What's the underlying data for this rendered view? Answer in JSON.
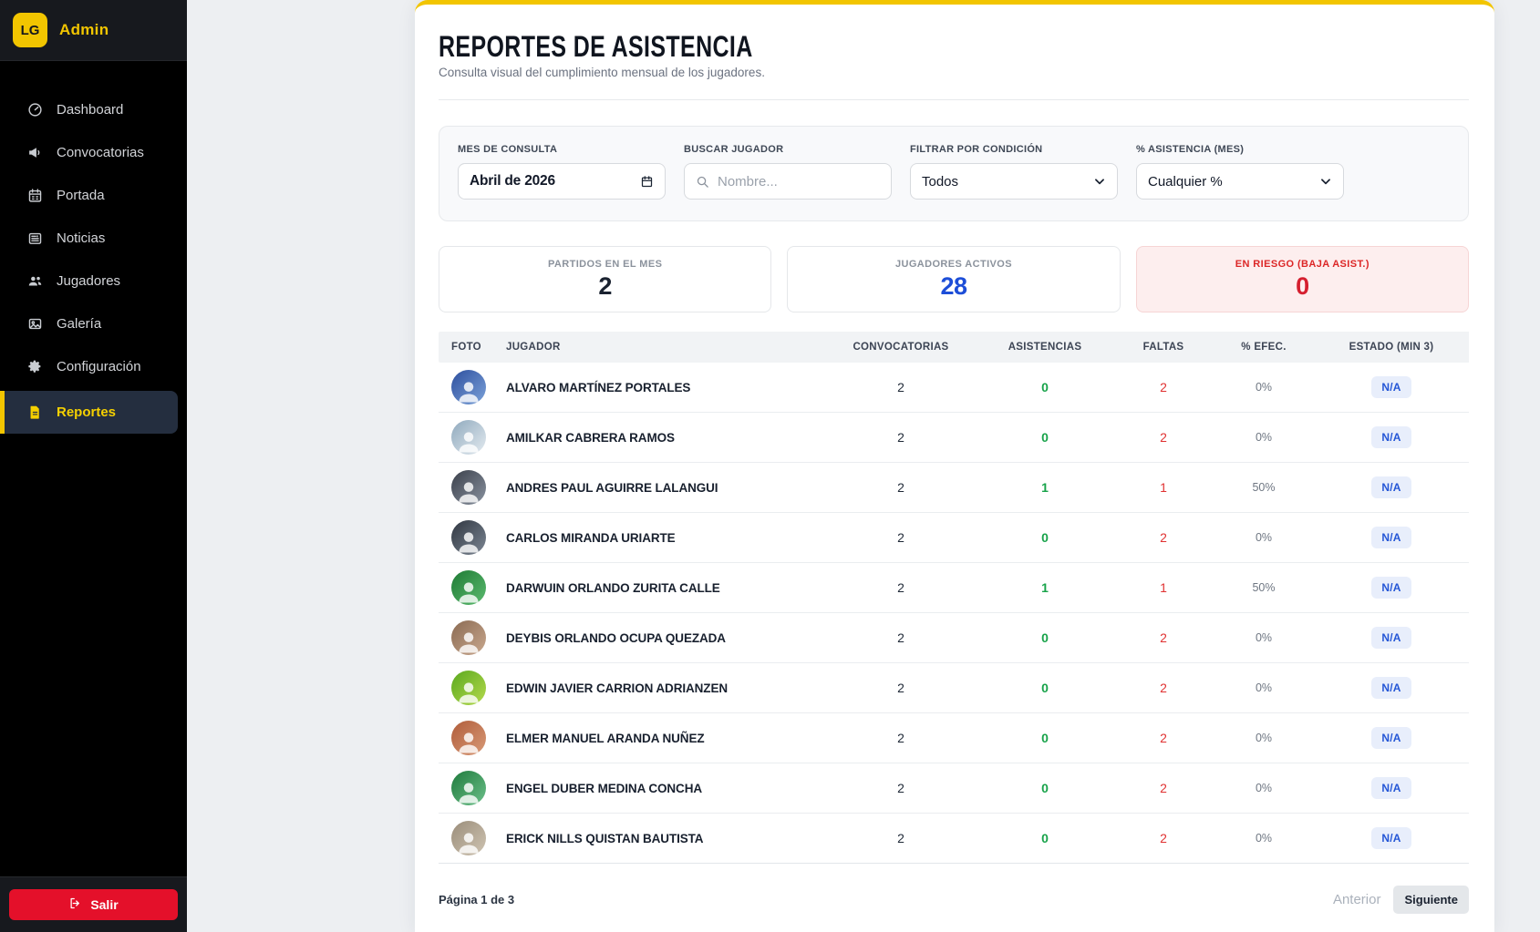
{
  "colors": {
    "accent_yellow": "#F2C500",
    "info_blue": "#1D4ED8",
    "success_green": "#18A34A",
    "alert_red": "#DC2626",
    "logout_red": "#E4102A"
  },
  "sidebar": {
    "logo_text": "LG",
    "brand": "Admin",
    "items": [
      {
        "label": "Dashboard",
        "icon": "gauge",
        "active": false
      },
      {
        "label": "Convocatorias",
        "icon": "megaphone",
        "active": false
      },
      {
        "label": "Portada",
        "icon": "calendar",
        "active": false
      },
      {
        "label": "Noticias",
        "icon": "newspaper",
        "active": false
      },
      {
        "label": "Jugadores",
        "icon": "users",
        "active": false
      },
      {
        "label": "Galería",
        "icon": "image",
        "active": false
      },
      {
        "label": "Configuración",
        "icon": "gear",
        "active": false
      },
      {
        "label": "Reportes",
        "icon": "file",
        "active": true
      }
    ],
    "logout_label": "Salir"
  },
  "header": {
    "title": "REPORTES DE ASISTENCIA",
    "subtitle": "Consulta visual del cumplimiento mensual de los jugadores."
  },
  "filters": {
    "month": {
      "label": "MES DE CONSULTA",
      "value": "Abril de 2026"
    },
    "search": {
      "label": "BUSCAR JUGADOR",
      "placeholder": "Nombre..."
    },
    "condition": {
      "label": "FILTRAR POR CONDICIÓN",
      "value": "Todos"
    },
    "attendance": {
      "label": "% ASISTENCIA (MES)",
      "value": "Cualquier %"
    }
  },
  "stats": [
    {
      "label": "PARTIDOS EN EL MES",
      "value": "2",
      "color": "#1a2230",
      "danger": false
    },
    {
      "label": "JUGADORES ACTIVOS",
      "value": "28",
      "color": "#1d4ed8",
      "danger": false
    },
    {
      "label": "EN RIESGO (BAJA ASIST.)",
      "value": "0",
      "color": "#d51f2f",
      "danger": true
    }
  ],
  "table": {
    "headers": [
      "FOTO",
      "JUGADOR",
      "CONVOCATORIAS",
      "ASISTENCIAS",
      "FALTAS",
      "% EFEC.",
      "ESTADO (MIN 3)"
    ],
    "rows": [
      {
        "name": "ALVARO MARTÍNEZ PORTALES",
        "convocatorias": "2",
        "asistencias": "0",
        "faltas": "2",
        "efec": "0%",
        "estado": "N/A",
        "avatar_colors": [
          "#2e4f9e",
          "#7ba2d9"
        ]
      },
      {
        "name": "AMILKAR CABRERA RAMOS",
        "convocatorias": "2",
        "asistencias": "0",
        "faltas": "2",
        "efec": "0%",
        "estado": "N/A",
        "avatar_colors": [
          "#8fa9bd",
          "#e4ebf0"
        ]
      },
      {
        "name": "ANDRES PAUL AGUIRRE LALANGUI",
        "convocatorias": "2",
        "asistencias": "1",
        "faltas": "1",
        "efec": "50%",
        "estado": "N/A",
        "avatar_colors": [
          "#3a3f4a",
          "#8a93a0"
        ]
      },
      {
        "name": "CARLOS MIRANDA URIARTE",
        "convocatorias": "2",
        "asistencias": "0",
        "faltas": "2",
        "efec": "0%",
        "estado": "N/A",
        "avatar_colors": [
          "#2f3640",
          "#7d8794"
        ]
      },
      {
        "name": "DARWUIN ORLANDO ZURITA CALLE",
        "convocatorias": "2",
        "asistencias": "1",
        "faltas": "1",
        "efec": "50%",
        "estado": "N/A",
        "avatar_colors": [
          "#1e7a34",
          "#5cbb6f"
        ]
      },
      {
        "name": "DEYBIS ORLANDO OCUPA QUEZADA",
        "convocatorias": "2",
        "asistencias": "0",
        "faltas": "2",
        "efec": "0%",
        "estado": "N/A",
        "avatar_colors": [
          "#8a6a52",
          "#c9a88e"
        ]
      },
      {
        "name": "EDWIN JAVIER CARRION ADRIANZEN",
        "convocatorias": "2",
        "asistencias": "0",
        "faltas": "2",
        "efec": "0%",
        "estado": "N/A",
        "avatar_colors": [
          "#5aa81e",
          "#b5da4d"
        ]
      },
      {
        "name": "ELMER MANUEL ARANDA NUÑEZ",
        "convocatorias": "2",
        "asistencias": "0",
        "faltas": "2",
        "efec": "0%",
        "estado": "N/A",
        "avatar_colors": [
          "#b05c3a",
          "#d89a77"
        ]
      },
      {
        "name": "ENGEL DUBER MEDINA CONCHA",
        "convocatorias": "2",
        "asistencias": "0",
        "faltas": "2",
        "efec": "0%",
        "estado": "N/A",
        "avatar_colors": [
          "#1f7a3c",
          "#6cc08a"
        ]
      },
      {
        "name": "ERICK NILLS QUISTAN BAUTISTA",
        "convocatorias": "2",
        "asistencias": "0",
        "faltas": "2",
        "efec": "0%",
        "estado": "N/A",
        "avatar_colors": [
          "#9a8d7a",
          "#cfc4b2"
        ]
      }
    ]
  },
  "pagination": {
    "info": "Página 1 de 3",
    "prev_label": "Anterior",
    "next_label": "Siguiente"
  }
}
